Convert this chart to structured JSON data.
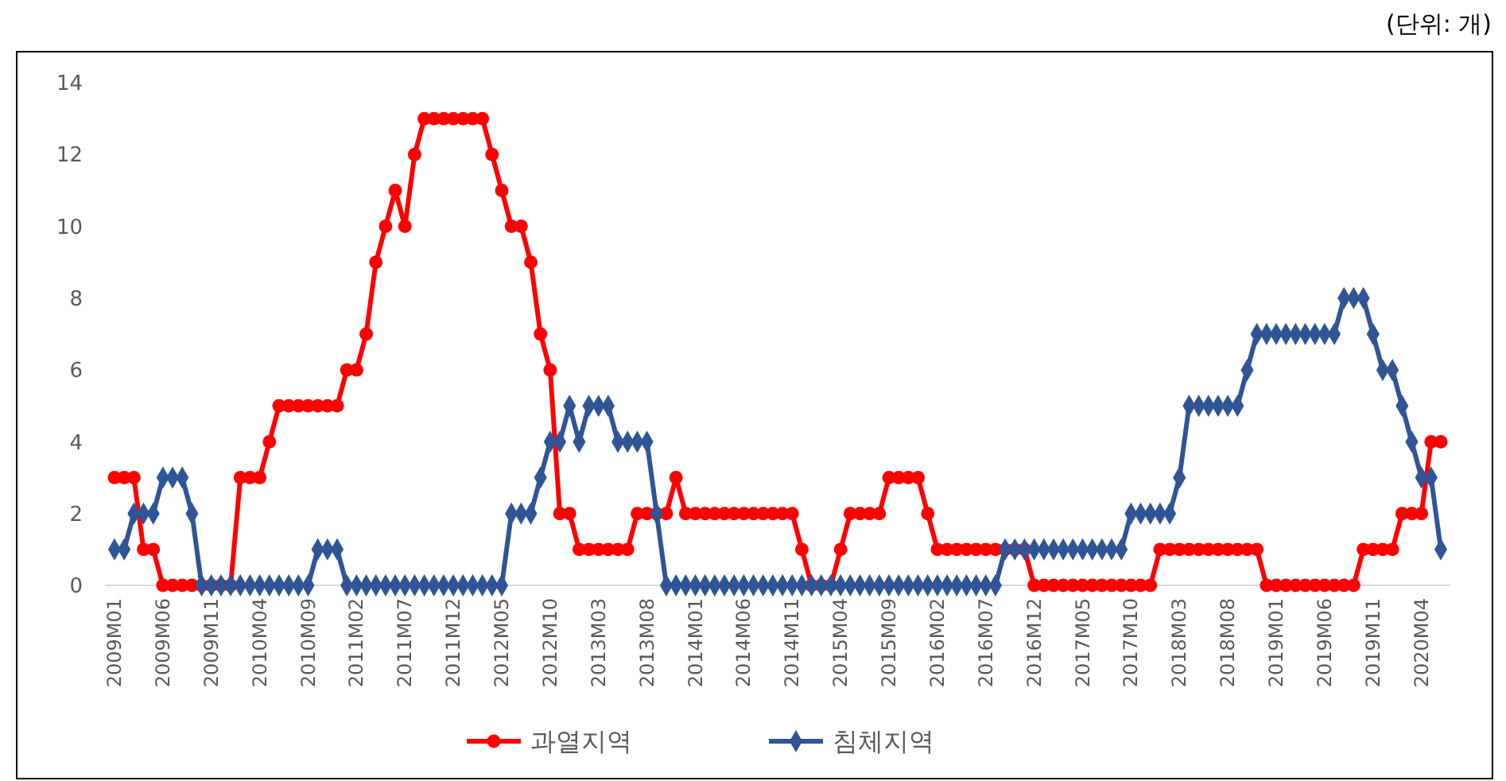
{
  "chart_data": {
    "type": "line",
    "annotations": [
      "(단위: 개)"
    ],
    "categories": [
      "2009M01",
      null,
      null,
      null,
      null,
      "2009M06",
      null,
      null,
      null,
      null,
      "2009M11",
      null,
      null,
      null,
      null,
      "2010M04",
      null,
      null,
      null,
      null,
      "2010M09",
      null,
      null,
      null,
      null,
      "2011M02",
      null,
      null,
      null,
      null,
      "2011M07",
      null,
      null,
      null,
      null,
      "2011M12",
      null,
      null,
      null,
      null,
      "2012M05",
      null,
      null,
      null,
      null,
      "2012M10",
      null,
      null,
      null,
      null,
      "2013M03",
      null,
      null,
      null,
      null,
      "2013M08",
      null,
      null,
      null,
      null,
      "2014M01",
      null,
      null,
      null,
      null,
      "2014M06",
      null,
      null,
      null,
      null,
      "2014M11",
      null,
      null,
      null,
      null,
      "2015M04",
      null,
      null,
      null,
      null,
      "2015M09",
      null,
      null,
      null,
      null,
      "2016M02",
      null,
      null,
      null,
      null,
      "2016M07",
      null,
      null,
      null,
      null,
      "2016M12",
      null,
      null,
      null,
      null,
      "2017M05",
      null,
      null,
      null,
      null,
      "2017M10",
      null,
      null,
      null,
      null,
      "2018M03",
      null,
      null,
      null,
      null,
      "2018M08",
      null,
      null,
      null,
      null,
      "2019M01",
      null,
      null,
      null,
      null,
      "2019M06",
      null,
      null,
      null,
      null,
      "2019M11",
      null,
      null,
      null,
      null,
      "2020M04",
      null,
      null
    ],
    "series": [
      {
        "name": "과열지역",
        "color": "#ff0000",
        "marker": "circle",
        "values": [
          3,
          3,
          3,
          1,
          1,
          0,
          0,
          0,
          0,
          0,
          0,
          0,
          0,
          3,
          3,
          3,
          4,
          5,
          5,
          5,
          5,
          5,
          5,
          5,
          6,
          6,
          7,
          9,
          10,
          11,
          10,
          12,
          13,
          13,
          13,
          13,
          13,
          13,
          13,
          12,
          11,
          10,
          10,
          9,
          7,
          6,
          2,
          2,
          1,
          1,
          1,
          1,
          1,
          1,
          2,
          2,
          2,
          2,
          3,
          2,
          2,
          2,
          2,
          2,
          2,
          2,
          2,
          2,
          2,
          2,
          2,
          1,
          0,
          0,
          0,
          1,
          2,
          2,
          2,
          2,
          3,
          3,
          3,
          3,
          2,
          1,
          1,
          1,
          1,
          1,
          1,
          1,
          1,
          1,
          1,
          0,
          0,
          0,
          0,
          0,
          0,
          0,
          0,
          0,
          0,
          0,
          0,
          0,
          1,
          1,
          1,
          1,
          1,
          1,
          1,
          1,
          1,
          1,
          1,
          0,
          0,
          0,
          0,
          0,
          0,
          0,
          0,
          0,
          0,
          1,
          1,
          1,
          1,
          2,
          2,
          2,
          4,
          4
        ]
      },
      {
        "name": "침체지역",
        "color": "#2f5597",
        "marker": "diamond",
        "values": [
          1,
          1,
          2,
          2,
          2,
          3,
          3,
          3,
          2,
          0,
          0,
          0,
          0,
          0,
          0,
          0,
          0,
          0,
          0,
          0,
          0,
          1,
          1,
          1,
          0,
          0,
          0,
          0,
          0,
          0,
          0,
          0,
          0,
          0,
          0,
          0,
          0,
          0,
          0,
          0,
          0,
          2,
          2,
          2,
          3,
          4,
          4,
          5,
          4,
          5,
          5,
          5,
          4,
          4,
          4,
          4,
          2,
          0,
          0,
          0,
          0,
          0,
          0,
          0,
          0,
          0,
          0,
          0,
          0,
          0,
          0,
          0,
          0,
          0,
          0,
          0,
          0,
          0,
          0,
          0,
          0,
          0,
          0,
          0,
          0,
          0,
          0,
          0,
          0,
          0,
          0,
          0,
          1,
          1,
          1,
          1,
          1,
          1,
          1,
          1,
          1,
          1,
          1,
          1,
          1,
          2,
          2,
          2,
          2,
          2,
          3,
          5,
          5,
          5,
          5,
          5,
          5,
          6,
          7,
          7,
          7,
          7,
          7,
          7,
          7,
          7,
          7,
          8,
          8,
          8,
          7,
          6,
          6,
          5,
          4,
          3,
          3,
          1
        ]
      }
    ],
    "ylim": [
      0,
      14
    ],
    "yticks": [
      0,
      2,
      4,
      6,
      8,
      10,
      12,
      14
    ],
    "grid": false,
    "legend": "bottom"
  }
}
